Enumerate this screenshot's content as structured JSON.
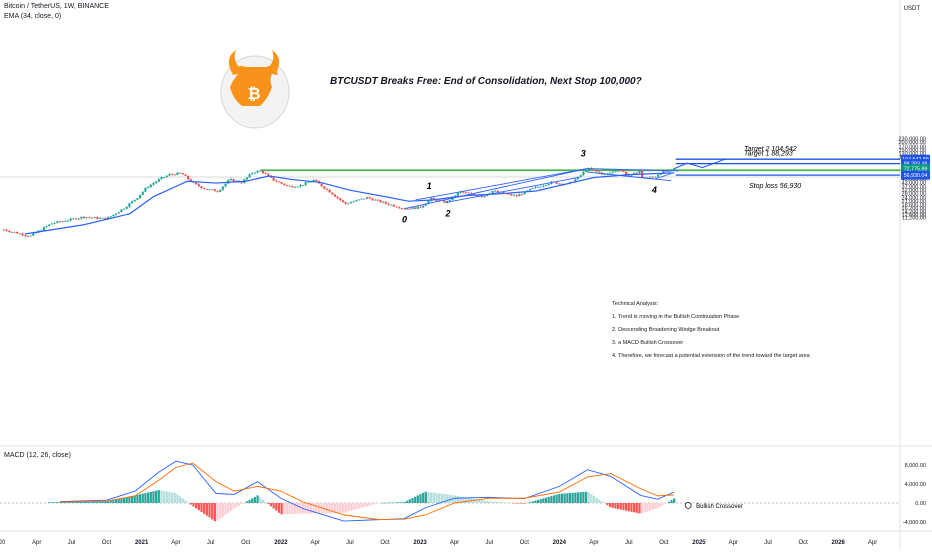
{
  "header": {
    "symbol": "Bitcoin / TetherUS, 1W, BINANCE",
    "ema_label": "EMA (34, close, 0)",
    "currency": "USDT",
    "macd_label": "MACD (12, 26, close)"
  },
  "idea_title": "BTCUSDT Breaks Free: End of Consolidation, Next Stop 100,000?",
  "annotations": {
    "target2": "Target 2  104,542",
    "target1": "Target 1  88,293",
    "stop_loss": "Stop loss 56,930",
    "bullish_crossover": "Bullish Crossover",
    "wave_0": "0",
    "wave_1": "1",
    "wave_2": "2",
    "wave_3": "3",
    "wave_4": "4"
  },
  "technical_analysis": {
    "heading": "Technical Analysis:",
    "points": [
      "1. Trend is moving in the Bullish Continuation Phase",
      "2. Descending Broadening Wedge Breakout",
      "3. a MACD Bullish Crossover",
      "4. Therefore, we forecast a potential extension of the trend toward the target area"
    ]
  },
  "price_badges": {
    "target2": "104,542.89",
    "target1": "88,293.48",
    "current": "72,775.99",
    "current_sub": "3d 1h",
    "stop": "56,930.04"
  },
  "colors": {
    "up": "#26a69a",
    "down": "#ef5350",
    "ema": "#2962ff",
    "level": "#1e53e5",
    "zone": "#4caf50",
    "macd_line": "#2962ff",
    "signal_line": "#ff6d00",
    "logo": "#f7931a"
  },
  "icons": {
    "logo": "bull-bitcoin-logo"
  },
  "chart_data": {
    "type": "candlestick",
    "scale": "log",
    "yaxis_ticks": [
      230000,
      200000,
      170000,
      150000,
      130000,
      115000,
      99000,
      88000,
      76000,
      65000,
      55000,
      49000,
      43000,
      37000,
      32000,
      28000,
      24000,
      21000,
      18600,
      16200,
      14200,
      12600,
      11200
    ],
    "xaxis_ticks": [
      "20",
      "Apr",
      "Jul",
      "Oct",
      "2021",
      "Apr",
      "Jul",
      "Oct",
      "2022",
      "Apr",
      "Jul",
      "Oct",
      "2023",
      "Apr",
      "Jul",
      "Oct",
      "2024",
      "Apr",
      "Jul",
      "Oct",
      "2025",
      "Apr",
      "Jul",
      "Oct",
      "2026",
      "Apr"
    ],
    "xaxis_tick_dates": [
      "2020-01",
      "2020-04",
      "2020-07",
      "2020-10",
      "2021-01",
      "2021-04",
      "2021-07",
      "2021-10",
      "2022-01",
      "2022-04",
      "2022-07",
      "2022-10",
      "2023-01",
      "2023-04",
      "2023-07",
      "2023-10",
      "2024-01",
      "2024-04",
      "2024-07",
      "2024-10",
      "2025-01",
      "2025-04",
      "2025-07",
      "2025-10",
      "2026-01",
      "2026-04"
    ],
    "price_path": [
      [
        "2020-01-01",
        7200
      ],
      [
        "2020-03-15",
        5500
      ],
      [
        "2020-05-10",
        9000
      ],
      [
        "2020-08-01",
        11500
      ],
      [
        "2020-10-01",
        10700
      ],
      [
        "2020-11-15",
        16000
      ],
      [
        "2020-12-20",
        24000
      ],
      [
        "2021-01-15",
        36000
      ],
      [
        "2021-02-20",
        50000
      ],
      [
        "2021-03-15",
        58000
      ],
      [
        "2021-04-15",
        61000
      ],
      [
        "2021-05-20",
        40000
      ],
      [
        "2021-06-20",
        33000
      ],
      [
        "2021-07-20",
        31000
      ],
      [
        "2021-08-20",
        48000
      ],
      [
        "2021-09-20",
        43000
      ],
      [
        "2021-10-20",
        64000
      ],
      [
        "2021-11-10",
        67000
      ],
      [
        "2021-12-10",
        48000
      ],
      [
        "2022-01-20",
        37000
      ],
      [
        "2022-02-20",
        38000
      ],
      [
        "2022-03-28",
        47000
      ],
      [
        "2022-05-10",
        30000
      ],
      [
        "2022-06-18",
        19000
      ],
      [
        "2022-08-15",
        24000
      ],
      [
        "2022-10-01",
        19500
      ],
      [
        "2022-11-21",
        15800
      ],
      [
        "2022-12-31",
        16500
      ],
      [
        "2023-01-30",
        23000
      ],
      [
        "2023-03-10",
        20000
      ],
      [
        "2023-04-15",
        30000
      ],
      [
        "2023-06-15",
        25000
      ],
      [
        "2023-07-10",
        31000
      ],
      [
        "2023-09-10",
        25500
      ],
      [
        "2023-10-25",
        34500
      ],
      [
        "2023-12-10",
        43000
      ],
      [
        "2024-01-23",
        40000
      ],
      [
        "2024-02-20",
        52000
      ],
      [
        "2024-03-14",
        73000
      ],
      [
        "2024-04-30",
        58000
      ],
      [
        "2024-06-05",
        71000
      ],
      [
        "2024-07-05",
        54000
      ],
      [
        "2024-07-29",
        69000
      ],
      [
        "2024-08-05",
        51000
      ],
      [
        "2024-09-06",
        53000
      ],
      [
        "2024-09-27",
        66000
      ],
      [
        "2024-10-14",
        64000
      ],
      [
        "2024-10-28",
        72775
      ]
    ],
    "ema_34": [
      [
        "2020-03-01",
        6000
      ],
      [
        "2020-08-01",
        8500
      ],
      [
        "2020-12-01",
        13000
      ],
      [
        "2021-02-01",
        25000
      ],
      [
        "2021-05-01",
        45000
      ],
      [
        "2021-07-15",
        42000
      ],
      [
        "2021-10-01",
        45000
      ],
      [
        "2021-12-01",
        55000
      ],
      [
        "2022-02-01",
        48000
      ],
      [
        "2022-04-15",
        43000
      ],
      [
        "2022-07-01",
        32000
      ],
      [
        "2022-10-01",
        25000
      ],
      [
        "2022-12-01",
        21000
      ],
      [
        "2023-02-01",
        22000
      ],
      [
        "2023-05-01",
        26000
      ],
      [
        "2023-08-01",
        28000
      ],
      [
        "2023-11-01",
        31000
      ],
      [
        "2024-01-15",
        40000
      ],
      [
        "2024-04-01",
        52000
      ],
      [
        "2024-07-01",
        58000
      ],
      [
        "2024-10-28",
        62000
      ]
    ],
    "projection": [
      [
        "2024-10-28",
        72775
      ],
      [
        "2024-12-01",
        90000
      ],
      [
        "2025-01-10",
        76000
      ],
      [
        "2025-03-10",
        104542
      ]
    ],
    "levels": [
      {
        "name": "Target 2",
        "value": 104542
      },
      {
        "name": "Target 1",
        "value": 88293
      },
      {
        "name": "Stop loss",
        "value": 56930
      }
    ],
    "resistance_zone": [
      67500,
      69500
    ],
    "wave_points": [
      {
        "label": "0",
        "date": "2022-11-21",
        "price": 15800
      },
      {
        "label": "1",
        "date": "2023-01-30",
        "price": 23000
      },
      {
        "label": "2",
        "date": "2023-03-10",
        "price": 20000
      },
      {
        "label": "3",
        "date": "2024-03-14",
        "price": 73000
      },
      {
        "label": "4",
        "date": "2024-09-06",
        "price": 49000
      }
    ],
    "macd_axis_ticks": [
      8000,
      4000,
      0,
      -4000
    ],
    "macd_macd": [
      [
        "2020-06-01",
        300
      ],
      [
        "2020-10-01",
        600
      ],
      [
        "2020-12-15",
        2500
      ],
      [
        "2021-02-15",
        6500
      ],
      [
        "2021-04-01",
        8800
      ],
      [
        "2021-05-15",
        8000
      ],
      [
        "2021-07-15",
        2000
      ],
      [
        "2021-09-01",
        1800
      ],
      [
        "2021-11-01",
        4500
      ],
      [
        "2022-01-01",
        1000
      ],
      [
        "2022-03-01",
        -1200
      ],
      [
        "2022-06-15",
        -3800
      ],
      [
        "2022-09-15",
        -3500
      ],
      [
        "2022-11-20",
        -3300
      ],
      [
        "2023-01-15",
        -1000
      ],
      [
        "2023-04-01",
        1000
      ],
      [
        "2023-07-01",
        1200
      ],
      [
        "2023-10-01",
        900
      ],
      [
        "2024-01-01",
        3500
      ],
      [
        "2024-03-15",
        7000
      ],
      [
        "2024-05-15",
        5600
      ],
      [
        "2024-08-01",
        1600
      ],
      [
        "2024-09-15",
        800
      ],
      [
        "2024-10-28",
        2300
      ]
    ],
    "macd_signal": [
      [
        "2020-06-01",
        200
      ],
      [
        "2020-10-01",
        400
      ],
      [
        "2020-12-15",
        1500
      ],
      [
        "2021-02-15",
        4800
      ],
      [
        "2021-04-01",
        7500
      ],
      [
        "2021-05-15",
        8400
      ],
      [
        "2021-07-15",
        4500
      ],
      [
        "2021-09-01",
        2500
      ],
      [
        "2021-11-01",
        3500
      ],
      [
        "2022-01-01",
        2500
      ],
      [
        "2022-03-01",
        200
      ],
      [
        "2022-06-15",
        -2500
      ],
      [
        "2022-09-15",
        -3500
      ],
      [
        "2022-11-20",
        -3400
      ],
      [
        "2023-01-15",
        -2500
      ],
      [
        "2023-04-01",
        0
      ],
      [
        "2023-07-01",
        1000
      ],
      [
        "2023-10-01",
        1000
      ],
      [
        "2024-01-01",
        2300
      ],
      [
        "2024-03-15",
        5500
      ],
      [
        "2024-05-15",
        6200
      ],
      [
        "2024-08-01",
        3000
      ],
      [
        "2024-09-15",
        1500
      ],
      [
        "2024-10-28",
        1700
      ]
    ]
  }
}
